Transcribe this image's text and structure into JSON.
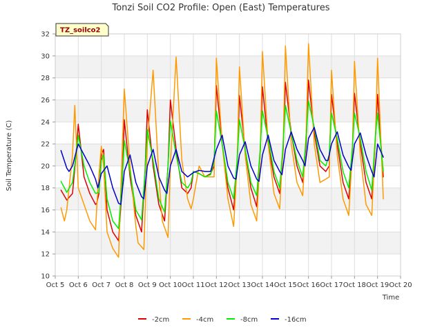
{
  "chart_data": {
    "type": "line",
    "title": "Tonzi Soil CO2 Profile: Open (East) Temperatures",
    "xlabel": "Time",
    "ylabel": "Soil Temperature (C)",
    "station_label": "TZ_soilco2",
    "xlim": [
      5,
      20
    ],
    "ylim": [
      10,
      32
    ],
    "x_ticks": [
      {
        "value": 5,
        "label": "Oct 5"
      },
      {
        "value": 6,
        "label": "Oct 6"
      },
      {
        "value": 7,
        "label": "Oct 7"
      },
      {
        "value": 8,
        "label": "Oct 8"
      },
      {
        "value": 9,
        "label": "Oct 9"
      },
      {
        "value": 10,
        "label": "Oct 10"
      },
      {
        "value": 11,
        "label": "Oct 11"
      },
      {
        "value": 12,
        "label": "Oct 12"
      },
      {
        "value": 13,
        "label": "Oct 13"
      },
      {
        "value": 14,
        "label": "Oct 14"
      },
      {
        "value": 15,
        "label": "Oct 15"
      },
      {
        "value": 16,
        "label": "Oct 16"
      },
      {
        "value": 17,
        "label": "Oct 17"
      },
      {
        "value": 18,
        "label": "Oct 18"
      },
      {
        "value": 19,
        "label": "Oct 19"
      },
      {
        "value": 20,
        "label": "Oct 20"
      }
    ],
    "y_ticks": [
      10,
      12,
      14,
      16,
      18,
      20,
      22,
      24,
      26,
      28,
      30,
      32
    ],
    "grid": true,
    "legend_position": "bottom",
    "series": [
      {
        "name": "-2cm",
        "color": "#dd0000",
        "x": [
          5.25,
          5.5,
          5.75,
          5.9,
          6.0,
          6.25,
          6.5,
          6.75,
          6.8,
          6.9,
          7.0,
          7.1,
          7.25,
          7.5,
          7.75,
          7.9,
          8.0,
          8.25,
          8.5,
          8.75,
          8.9,
          9.0,
          9.25,
          9.5,
          9.75,
          9.9,
          10.0,
          10.25,
          10.5,
          10.75,
          10.9,
          11.0,
          11.25,
          11.5,
          11.75,
          11.9,
          12.0,
          12.25,
          12.5,
          12.75,
          12.9,
          13.0,
          13.25,
          13.5,
          13.75,
          13.9,
          14.0,
          14.25,
          14.5,
          14.75,
          14.9,
          15.0,
          15.25,
          15.5,
          15.75,
          15.9,
          16.0,
          16.25,
          16.5,
          16.75,
          16.9,
          17.0,
          17.25,
          17.5,
          17.75,
          17.9,
          18.0,
          18.25,
          18.5,
          18.75,
          18.9,
          19.0,
          19.25
        ],
        "y": [
          17.8,
          16.9,
          17.5,
          21.0,
          23.8,
          19.0,
          17.5,
          16.5,
          16.6,
          17.5,
          21.0,
          21.5,
          16.0,
          14.0,
          13.2,
          18.0,
          24.2,
          19.0,
          15.5,
          14.0,
          19.5,
          25.1,
          20.0,
          16.5,
          15.0,
          20.0,
          26.0,
          21.5,
          18.0,
          17.5,
          18.0,
          19.5,
          19.3,
          19.0,
          19.3,
          20.0,
          27.3,
          22.0,
          18.0,
          16.0,
          20.0,
          26.4,
          21.5,
          18.0,
          16.3,
          21.0,
          27.2,
          22.0,
          19.0,
          17.5,
          21.5,
          27.6,
          23.0,
          20.0,
          18.5,
          22.0,
          27.8,
          23.0,
          20.0,
          19.5,
          20.0,
          26.5,
          22.0,
          18.5,
          17.0,
          21.0,
          26.6,
          22.0,
          18.5,
          17.0,
          22.0,
          26.5,
          19.0
        ]
      },
      {
        "name": "-4cm",
        "color": "#ff9900",
        "x": [
          5.25,
          5.4,
          5.5,
          5.75,
          5.85,
          6.0,
          6.25,
          6.5,
          6.75,
          6.85,
          7.0,
          7.1,
          7.25,
          7.5,
          7.75,
          7.85,
          8.0,
          8.25,
          8.5,
          8.6,
          8.85,
          9.0,
          9.25,
          9.5,
          9.65,
          9.9,
          10.0,
          10.25,
          10.5,
          10.75,
          10.9,
          11.0,
          11.25,
          11.5,
          11.75,
          11.9,
          12.0,
          12.25,
          12.5,
          12.75,
          12.9,
          13.0,
          13.25,
          13.5,
          13.75,
          13.9,
          14.0,
          14.25,
          14.5,
          14.75,
          14.9,
          15.0,
          15.25,
          15.5,
          15.75,
          15.9,
          16.0,
          16.25,
          16.5,
          16.75,
          16.9,
          17.0,
          17.25,
          17.5,
          17.75,
          17.9,
          18.0,
          18.25,
          18.5,
          18.75,
          18.9,
          19.0,
          19.25
        ],
        "y": [
          16.2,
          15.0,
          16.0,
          21.0,
          25.5,
          18.0,
          16.5,
          15.0,
          14.2,
          18.0,
          21.8,
          20.0,
          14.0,
          12.5,
          11.7,
          18.0,
          27.0,
          20.0,
          14.5,
          13.0,
          12.4,
          22.0,
          28.7,
          19.0,
          15.0,
          13.5,
          20.0,
          29.9,
          20.5,
          17.0,
          16.1,
          17.0,
          20.0,
          19.0,
          19.0,
          19.0,
          29.8,
          22.0,
          17.0,
          14.5,
          20.0,
          29.0,
          21.0,
          16.5,
          15.0,
          21.0,
          30.4,
          22.0,
          17.5,
          16.1,
          22.0,
          30.9,
          22.0,
          18.5,
          17.3,
          23.0,
          31.1,
          22.0,
          18.5,
          18.8,
          19.0,
          28.7,
          21.0,
          17.0,
          15.5,
          21.0,
          29.5,
          21.0,
          16.5,
          15.5,
          22.0,
          29.8,
          17.0
        ]
      },
      {
        "name": "-8cm",
        "color": "#00ee00",
        "x": [
          5.25,
          5.5,
          5.75,
          5.9,
          6.0,
          6.25,
          6.5,
          6.75,
          6.9,
          7.0,
          7.1,
          7.25,
          7.5,
          7.75,
          7.9,
          8.0,
          8.25,
          8.5,
          8.75,
          8.9,
          9.0,
          9.25,
          9.5,
          9.75,
          9.9,
          10.0,
          10.25,
          10.5,
          10.75,
          10.9,
          11.0,
          11.25,
          11.5,
          11.75,
          11.9,
          12.0,
          12.25,
          12.5,
          12.75,
          12.9,
          13.0,
          13.25,
          13.5,
          13.75,
          13.9,
          14.0,
          14.25,
          14.5,
          14.75,
          14.9,
          15.0,
          15.25,
          15.5,
          15.75,
          15.9,
          16.0,
          16.25,
          16.5,
          16.75,
          16.9,
          17.0,
          17.25,
          17.5,
          17.75,
          17.9,
          18.0,
          18.25,
          18.5,
          18.75,
          18.9,
          19.0,
          19.25
        ],
        "y": [
          18.6,
          17.6,
          18.5,
          21.0,
          22.8,
          20.0,
          18.5,
          17.5,
          17.6,
          20.5,
          21.0,
          17.0,
          15.0,
          14.3,
          18.5,
          22.3,
          19.5,
          16.0,
          15.1,
          19.5,
          23.3,
          20.5,
          17.0,
          15.8,
          20.0,
          24.1,
          21.0,
          18.5,
          18.0,
          18.5,
          19.5,
          19.3,
          19.0,
          19.2,
          20.5,
          25.0,
          22.0,
          18.5,
          17.0,
          20.5,
          24.2,
          21.5,
          18.5,
          17.3,
          21.5,
          25.0,
          22.5,
          19.5,
          18.0,
          22.0,
          25.5,
          23.0,
          20.5,
          19.0,
          22.5,
          25.9,
          23.5,
          20.5,
          20.0,
          21.0,
          24.8,
          22.5,
          19.5,
          18.0,
          21.5,
          24.8,
          22.5,
          19.5,
          17.8,
          22.5,
          24.8,
          19.5
        ]
      },
      {
        "name": "-16cm",
        "color": "#0000cc",
        "x": [
          5.25,
          5.5,
          5.6,
          5.75,
          6.0,
          6.25,
          6.5,
          6.75,
          6.85,
          7.0,
          7.25,
          7.5,
          7.75,
          7.85,
          8.0,
          8.25,
          8.5,
          8.75,
          8.85,
          9.0,
          9.25,
          9.5,
          9.75,
          9.85,
          10.0,
          10.25,
          10.5,
          10.75,
          11.0,
          11.25,
          11.5,
          11.75,
          12.0,
          12.25,
          12.5,
          12.75,
          12.85,
          13.0,
          13.25,
          13.5,
          13.75,
          13.85,
          14.0,
          14.25,
          14.5,
          14.75,
          14.85,
          15.0,
          15.25,
          15.5,
          15.75,
          15.85,
          16.0,
          16.25,
          16.5,
          16.75,
          16.85,
          17.0,
          17.25,
          17.5,
          17.75,
          17.85,
          18.0,
          18.25,
          18.5,
          18.75,
          18.85,
          19.0,
          19.25
        ],
        "y": [
          21.4,
          19.8,
          19.5,
          20.0,
          22.0,
          21.0,
          20.0,
          18.8,
          18.0,
          19.3,
          20.0,
          18.0,
          16.6,
          16.5,
          19.5,
          21.0,
          18.5,
          17.2,
          17.0,
          20.0,
          21.5,
          19.0,
          17.8,
          17.5,
          20.0,
          21.5,
          19.5,
          19.0,
          19.4,
          19.6,
          19.5,
          19.5,
          21.5,
          22.8,
          20.0,
          18.9,
          18.8,
          21.0,
          22.2,
          20.0,
          18.8,
          18.6,
          21.0,
          22.8,
          20.5,
          19.5,
          19.2,
          21.5,
          23.1,
          21.5,
          20.5,
          20.0,
          22.5,
          23.5,
          21.5,
          20.5,
          20.5,
          22.0,
          23.1,
          21.0,
          19.9,
          19.6,
          22.0,
          23.0,
          21.0,
          19.5,
          19.0,
          22.0,
          20.8
        ]
      }
    ]
  }
}
